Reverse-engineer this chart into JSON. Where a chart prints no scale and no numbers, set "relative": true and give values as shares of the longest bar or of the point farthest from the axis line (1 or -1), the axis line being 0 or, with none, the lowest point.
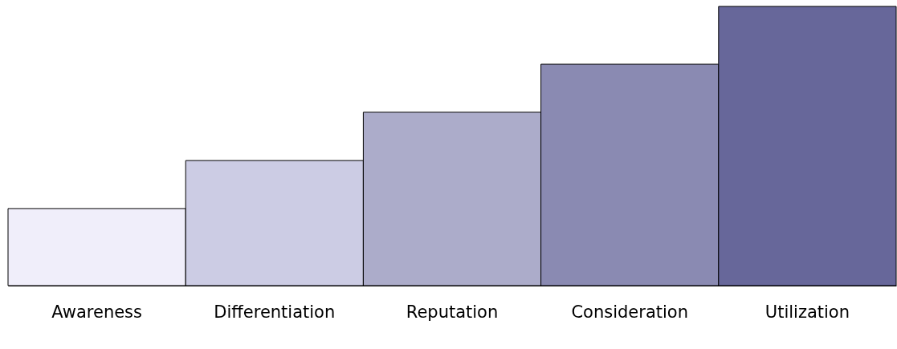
{
  "chart_data": {
    "type": "bar",
    "relative": true,
    "categories": [
      "Awareness",
      "Differentiation",
      "Reputation",
      "Consideration",
      "Utilization"
    ],
    "values": [
      0.276,
      0.448,
      0.621,
      0.793,
      1
    ],
    "colors": [
      "#f0eefa",
      "#cccce4",
      "#acacca",
      "#8a8ab2",
      "#67679a"
    ],
    "grid": false
  }
}
